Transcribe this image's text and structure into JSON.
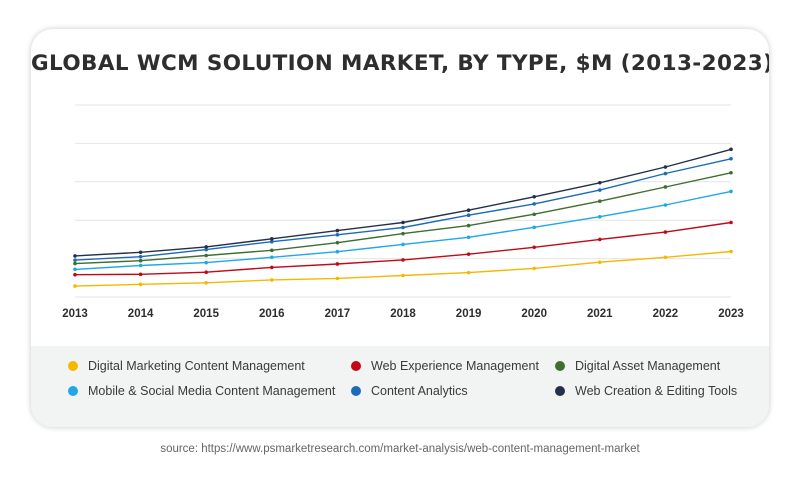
{
  "chart_data": {
    "type": "line",
    "title": "GLOBAL WCM SOLUTION MARKET, BY TYPE, $M (2013-2023)",
    "x": [
      "2013",
      "2014",
      "2015",
      "2016",
      "2017",
      "2018",
      "2019",
      "2020",
      "2021",
      "2022",
      "2023"
    ],
    "ylim": [
      0,
      10
    ],
    "grid": true,
    "legend_position": "bottom",
    "series": [
      {
        "name": "Digital Marketing Content Management",
        "color": "#f5b800",
        "values": [
          0.57,
          0.66,
          0.74,
          0.89,
          0.97,
          1.12,
          1.27,
          1.49,
          1.81,
          2.07,
          2.37
        ]
      },
      {
        "name": "Web Experience Management",
        "color": "#c00a15",
        "values": [
          1.16,
          1.18,
          1.29,
          1.54,
          1.72,
          1.93,
          2.23,
          2.59,
          3.0,
          3.38,
          3.88
        ]
      },
      {
        "name": "Digital Asset Management",
        "color": "#3f6e2f",
        "values": [
          1.74,
          1.89,
          2.16,
          2.43,
          2.83,
          3.3,
          3.72,
          4.31,
          4.99,
          5.73,
          6.47
        ]
      },
      {
        "name": "Mobile & Social Media Content Management",
        "color": "#1fa8e6",
        "values": [
          1.44,
          1.64,
          1.79,
          2.07,
          2.36,
          2.74,
          3.11,
          3.63,
          4.18,
          4.79,
          5.5
        ]
      },
      {
        "name": "Content Analytics",
        "color": "#1c6bb8",
        "values": [
          1.92,
          2.1,
          2.47,
          2.88,
          3.24,
          3.62,
          4.26,
          4.85,
          5.57,
          6.43,
          7.2
        ]
      },
      {
        "name": "Web Creation & Editing Tools",
        "color": "#24304a",
        "values": [
          2.14,
          2.33,
          2.61,
          3.03,
          3.46,
          3.88,
          4.52,
          5.22,
          5.95,
          6.77,
          7.69
        ]
      }
    ]
  },
  "source": "source: https://www.psmarketresearch.com/market-analysis/web-content-management-market"
}
